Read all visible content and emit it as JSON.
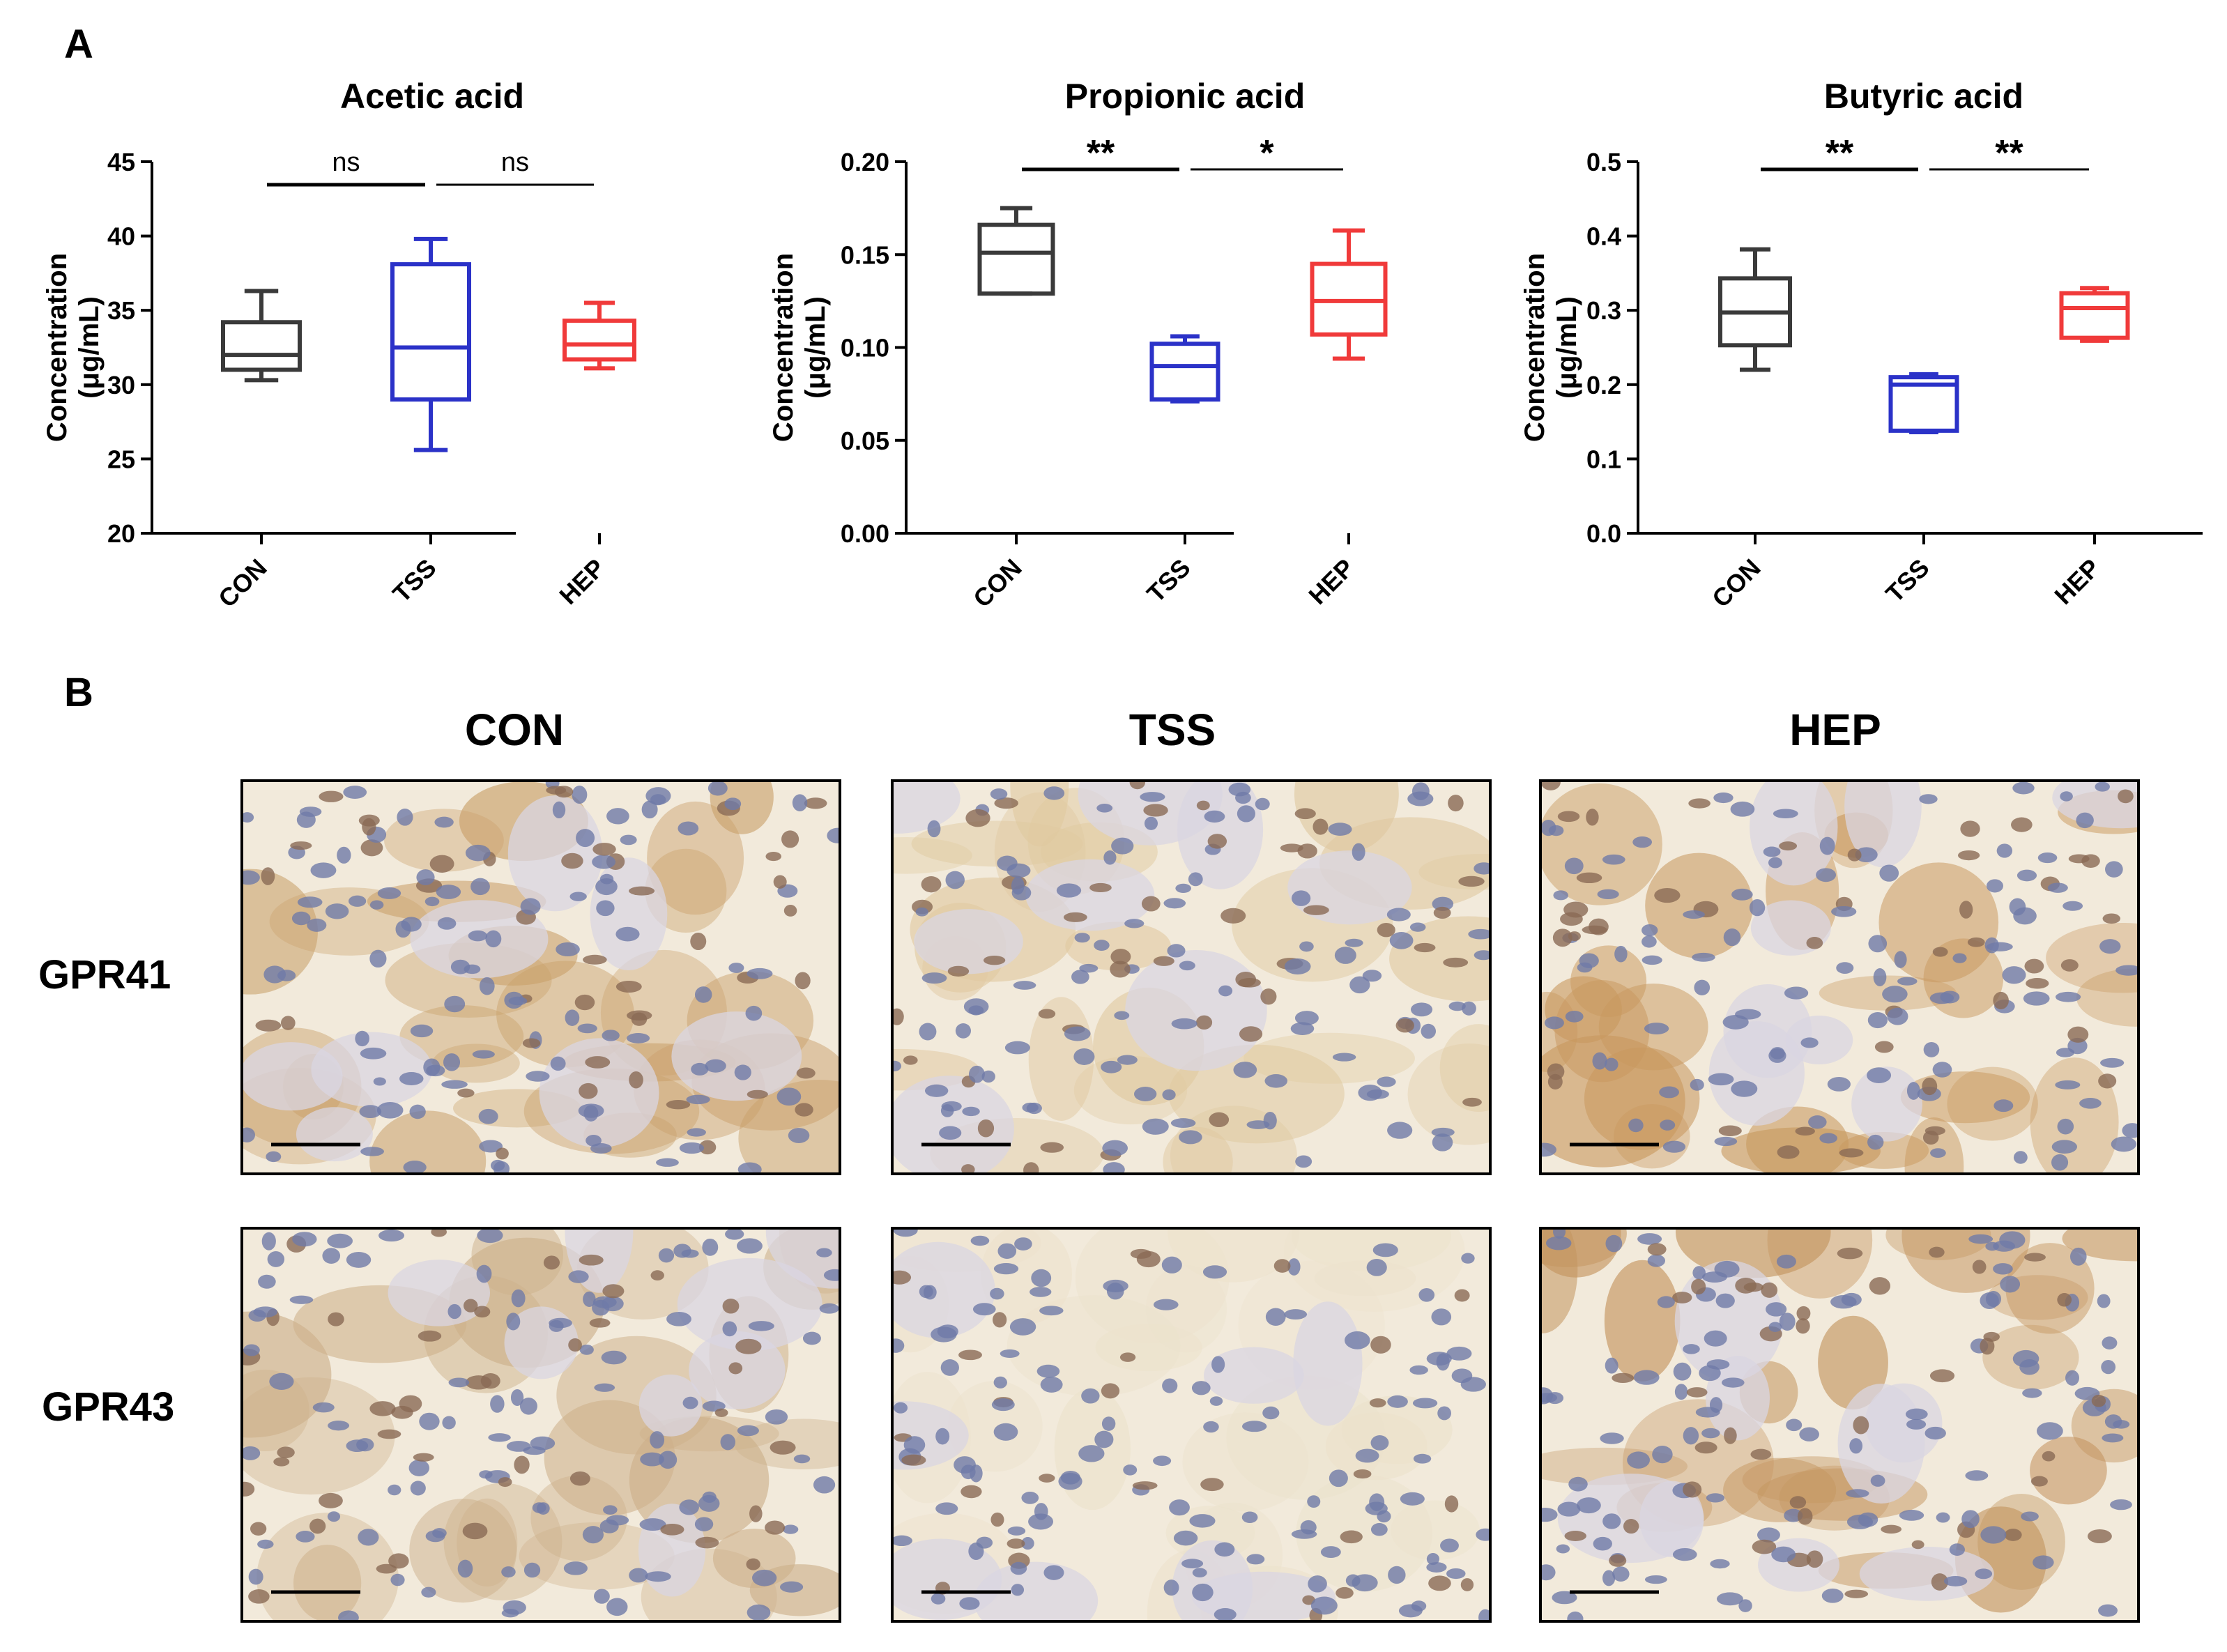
{
  "figure": {
    "panel_a_label": "A",
    "panel_b_label": "B"
  },
  "chart_data": [
    {
      "type": "box",
      "title": "Acetic acid",
      "ylabel": "Concentration\n(μg/mL)",
      "categories": [
        "CON",
        "TSS",
        "HEP"
      ],
      "ylim": [
        20,
        45
      ],
      "yticks": [
        "20",
        "25",
        "30",
        "35",
        "40",
        "45"
      ],
      "ytick_values": [
        20,
        25,
        30,
        35,
        40,
        45
      ],
      "series": [
        {
          "name": "CON",
          "color": "#3a3a3a",
          "min": 30.3,
          "q1": 31.0,
          "median": 32.0,
          "q3": 34.2,
          "max": 36.3
        },
        {
          "name": "TSS",
          "color": "#2b32c8",
          "min": 25.6,
          "q1": 29.0,
          "median": 32.5,
          "q3": 38.1,
          "max": 39.8
        },
        {
          "name": "HEP",
          "color": "#f03a3a",
          "min": 31.1,
          "q1": 31.7,
          "median": 32.7,
          "q3": 34.3,
          "max": 35.5
        }
      ],
      "significance": [
        {
          "from": 0,
          "to": 1,
          "label": "ns"
        },
        {
          "from": 1,
          "to": 2,
          "label": "ns"
        }
      ]
    },
    {
      "type": "box",
      "title": "Propionic acid",
      "ylabel": "Concentration\n(μg/mL)",
      "categories": [
        "CON",
        "TSS",
        "HEP"
      ],
      "ylim": [
        0,
        0.2
      ],
      "yticks": [
        "0.00",
        "0.05",
        "0.10",
        "0.15",
        "0.20"
      ],
      "ytick_values": [
        0,
        0.05,
        0.1,
        0.15,
        0.2
      ],
      "series": [
        {
          "name": "CON",
          "color": "#3a3a3a",
          "min": 0.129,
          "q1": 0.129,
          "median": 0.151,
          "q3": 0.166,
          "max": 0.175
        },
        {
          "name": "TSS",
          "color": "#2b32c8",
          "min": 0.071,
          "q1": 0.072,
          "median": 0.09,
          "q3": 0.102,
          "max": 0.106
        },
        {
          "name": "HEP",
          "color": "#f03a3a",
          "min": 0.094,
          "q1": 0.107,
          "median": 0.125,
          "q3": 0.145,
          "max": 0.163
        }
      ],
      "significance": [
        {
          "from": 0,
          "to": 1,
          "label": "**"
        },
        {
          "from": 1,
          "to": 2,
          "label": "*"
        }
      ]
    },
    {
      "type": "box",
      "title": "Butyric acid",
      "ylabel": "Concentration\n(μg/mL)",
      "categories": [
        "CON",
        "TSS",
        "HEP"
      ],
      "ylim": [
        0,
        0.5
      ],
      "yticks": [
        "0.0",
        "0.1",
        "0.2",
        "0.3",
        "0.4",
        "0.5"
      ],
      "ytick_values": [
        0,
        0.1,
        0.2,
        0.3,
        0.4,
        0.5
      ],
      "series": [
        {
          "name": "CON",
          "color": "#3a3a3a",
          "min": 0.22,
          "q1": 0.253,
          "median": 0.297,
          "q3": 0.343,
          "max": 0.382
        },
        {
          "name": "TSS",
          "color": "#2b32c8",
          "min": 0.136,
          "q1": 0.138,
          "median": 0.2,
          "q3": 0.21,
          "max": 0.214
        },
        {
          "name": "HEP",
          "color": "#f03a3a",
          "min": 0.259,
          "q1": 0.263,
          "median": 0.303,
          "q3": 0.323,
          "max": 0.33
        }
      ],
      "significance": [
        {
          "from": 0,
          "to": 1,
          "label": "**"
        },
        {
          "from": 1,
          "to": 2,
          "label": "**"
        }
      ]
    }
  ],
  "micrographs": {
    "columns": [
      "CON",
      "TSS",
      "HEP"
    ],
    "rows": [
      "GPR41",
      "GPR43"
    ],
    "tiles": [
      {
        "row": "GPR41",
        "col": "CON",
        "stain": "#c9a06a"
      },
      {
        "row": "GPR41",
        "col": "TSS",
        "stain": "#e0c9a0"
      },
      {
        "row": "GPR41",
        "col": "HEP",
        "stain": "#c8985e"
      },
      {
        "row": "GPR43",
        "col": "CON",
        "stain": "#cdb08a"
      },
      {
        "row": "GPR43",
        "col": "TSS",
        "stain": "#ece2cc"
      },
      {
        "row": "GPR43",
        "col": "HEP",
        "stain": "#c49560"
      }
    ]
  }
}
